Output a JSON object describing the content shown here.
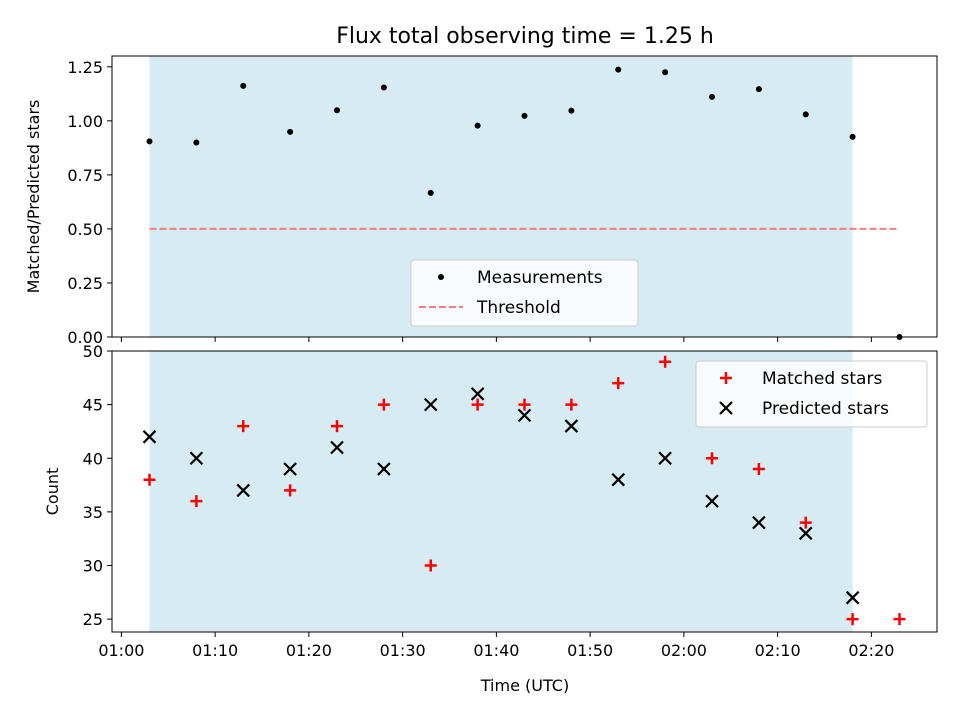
{
  "chart_data": {
    "title": "Flux total observing time = 1.25 h",
    "type": "scatter",
    "colors": {
      "shade": "#add8e6",
      "measurement": "#000000",
      "threshold": "#f08080",
      "matched": "#ff0000",
      "predicted": "#000000"
    },
    "shaded_interval": [
      "01:03",
      "02:18"
    ],
    "xlabel": "Time (UTC)",
    "x_ticks": [
      "01:00",
      "01:10",
      "01:20",
      "01:30",
      "01:40",
      "01:50",
      "02:00",
      "02:10",
      "02:20"
    ],
    "x_range": [
      "00:59",
      "02:27"
    ],
    "panels": [
      {
        "ylabel": "Matched/Predicted stars",
        "ylim": [
          0,
          1.3
        ],
        "y_ticks": [
          "0.00",
          "0.25",
          "0.50",
          "0.75",
          "1.00",
          "1.25"
        ],
        "legend": {
          "position": "lower center",
          "entries": [
            "Measurements",
            "Threshold"
          ]
        },
        "series": [
          {
            "name": "Measurements",
            "marker": "dot",
            "x": [
              "01:03",
              "01:08",
              "01:13",
              "01:18",
              "01:23",
              "01:28",
              "01:33",
              "01:38",
              "01:43",
              "01:48",
              "01:53",
              "01:58",
              "02:03",
              "02:08",
              "02:13",
              "02:18",
              "02:23"
            ],
            "y": [
              0.905,
              0.9,
              1.162,
              0.949,
              1.049,
              1.154,
              0.667,
              0.978,
              1.023,
              1.047,
              1.237,
              1.225,
              1.111,
              1.147,
              1.03,
              0.926,
              0.0
            ]
          },
          {
            "name": "Threshold",
            "marker": "dashed-line",
            "x": [
              "01:03",
              "02:23"
            ],
            "y": [
              0.5,
              0.5
            ]
          }
        ]
      },
      {
        "ylabel": "Count",
        "ylim": [
          23.8,
          50.0
        ],
        "y_ticks": [
          "25",
          "30",
          "35",
          "40",
          "45",
          "50"
        ],
        "legend": {
          "position": "upper right",
          "entries": [
            "Matched stars",
            "Predicted stars"
          ]
        },
        "series": [
          {
            "name": "Matched stars",
            "marker": "plus",
            "x": [
              "01:03",
              "01:08",
              "01:13",
              "01:18",
              "01:23",
              "01:28",
              "01:33",
              "01:38",
              "01:43",
              "01:48",
              "01:53",
              "01:58",
              "02:03",
              "02:08",
              "02:13",
              "02:18",
              "02:23"
            ],
            "y": [
              38,
              36,
              43,
              37,
              43,
              45,
              30,
              45,
              45,
              45,
              47,
              49,
              40,
              39,
              34,
              25,
              25
            ]
          },
          {
            "name": "Predicted stars",
            "marker": "x",
            "x": [
              "01:03",
              "01:08",
              "01:13",
              "01:18",
              "01:23",
              "01:28",
              "01:33",
              "01:38",
              "01:43",
              "01:48",
              "01:53",
              "01:58",
              "02:03",
              "02:08",
              "02:13",
              "02:18"
            ],
            "y": [
              42,
              40,
              37,
              39,
              41,
              39,
              45,
              46,
              44,
              43,
              38,
              40,
              36,
              34,
              33,
              27
            ]
          }
        ]
      }
    ]
  }
}
